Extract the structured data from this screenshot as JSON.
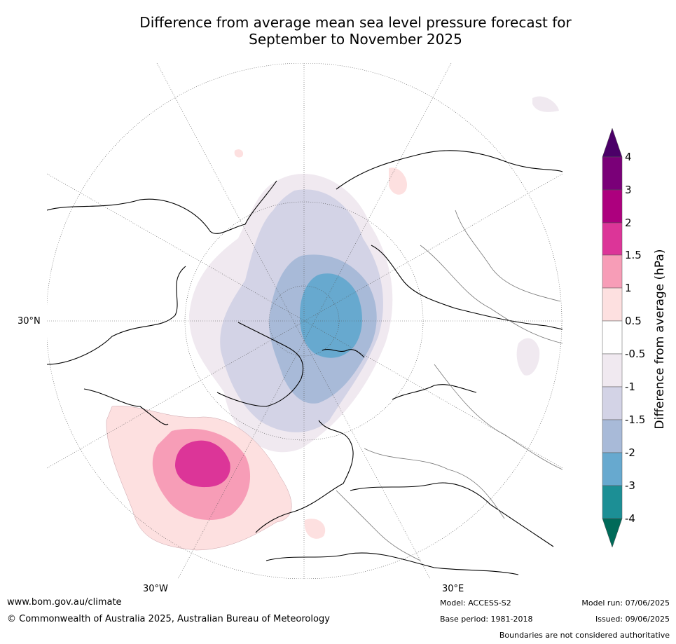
{
  "title_line1": "Difference from average mean sea level pressure forecast for",
  "title_line2": "September to November 2025",
  "axis_labels": {
    "lat_30n": "30°N",
    "lon_30w": "30°W",
    "lon_30e": "30°E"
  },
  "colorbar": {
    "title": "Difference from average (hPa)",
    "ticks": [
      "4",
      "3",
      "2",
      "1.5",
      "1",
      "0.5",
      "-0.5",
      "-1",
      "-1.5",
      "-2",
      "-3",
      "-4"
    ],
    "colors": {
      "extend_top": "#4b0068",
      "3_4": "#7a0078",
      "2_3": "#ad007e",
      "1.5_2": "#dc3598",
      "1_1.5": "#f79db7",
      "0.5_1": "#fde0e0",
      "neutral": "#ffffff",
      "-1_-0.5": "#f0e9f0",
      "-1.5_-1": "#d3d3e6",
      "-2_-1.5": "#a8bad8",
      "-3_-2": "#67a9cf",
      "-4_-3": "#1c8f95",
      "extend_bottom": "#006a59"
    }
  },
  "footer": {
    "website": "www.bom.gov.au/climate",
    "copyright": "© Commonwealth of Australia 2025, Australian Bureau of Meteorology",
    "model": "Model: ACCESS-S2",
    "base_period": "Base period: 1981-2018",
    "model_run": "Model run: 07/06/2025",
    "issued": "Issued: 09/06/2025",
    "disclaimer": "Boundaries are not considered authoritative"
  }
}
